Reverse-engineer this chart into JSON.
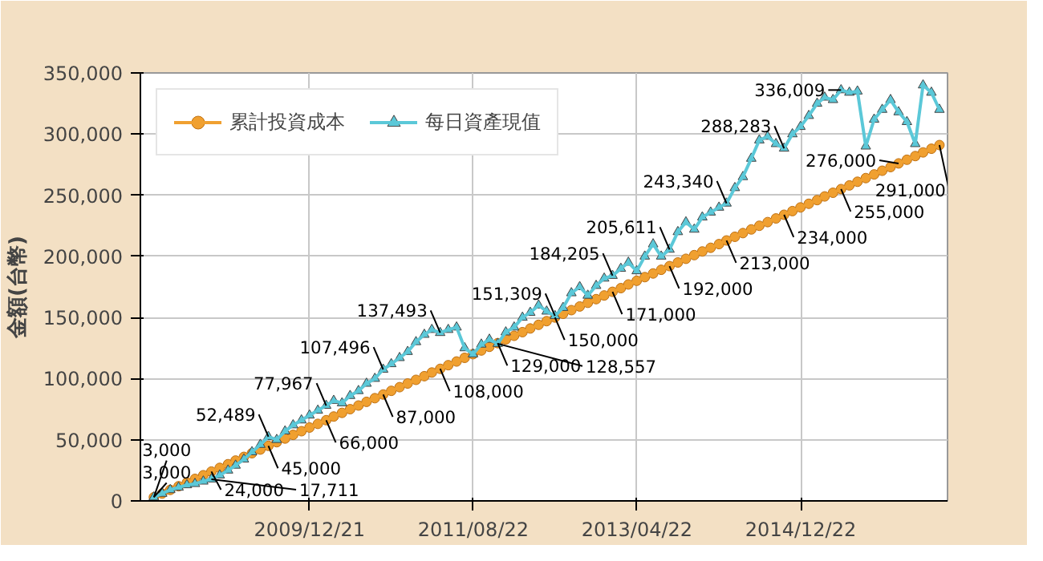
{
  "chart_data": {
    "type": "line",
    "ylabel": "金額(台幣)",
    "x": [
      "2008-05-21",
      "2008-06-21",
      "2008-07-21",
      "2008-08-21",
      "2008-09-21",
      "2008-10-21",
      "2008-11-21",
      "2008-12-21",
      "2009-01-21",
      "2009-02-21",
      "2009-03-21",
      "2009-04-21",
      "2009-05-21",
      "2009-06-21",
      "2009-07-21",
      "2009-08-21",
      "2009-09-21",
      "2009-10-21",
      "2009-11-21",
      "2009-12-21",
      "2010-01-21",
      "2010-02-21",
      "2010-03-21",
      "2010-04-21",
      "2010-05-21",
      "2010-06-21",
      "2010-07-21",
      "2010-08-21",
      "2010-09-21",
      "2010-10-21",
      "2010-11-21",
      "2010-12-21",
      "2011-01-21",
      "2011-02-21",
      "2011-03-21",
      "2011-04-21",
      "2011-05-21",
      "2011-06-21",
      "2011-07-21",
      "2011-08-21",
      "2011-09-21",
      "2011-10-21",
      "2011-11-21",
      "2011-12-21",
      "2012-01-21",
      "2012-02-21",
      "2012-03-21",
      "2012-04-21",
      "2012-05-21",
      "2012-06-21",
      "2012-07-21",
      "2012-08-21",
      "2012-09-21",
      "2012-10-21",
      "2012-11-21",
      "2012-12-21",
      "2013-01-21",
      "2013-02-21",
      "2013-03-21",
      "2013-04-21",
      "2013-05-21",
      "2013-06-21",
      "2013-07-21",
      "2013-08-21",
      "2013-09-21",
      "2013-10-21",
      "2013-11-21",
      "2013-12-21",
      "2014-01-21",
      "2014-02-21",
      "2014-03-21",
      "2014-04-21",
      "2014-05-21",
      "2014-06-21",
      "2014-07-21",
      "2014-08-21",
      "2014-09-21",
      "2014-10-21",
      "2014-11-21",
      "2014-12-21",
      "2015-01-21",
      "2015-02-21",
      "2015-03-21",
      "2015-04-21",
      "2015-05-21",
      "2015-06-21",
      "2015-07-21",
      "2015-08-21",
      "2015-09-21",
      "2015-10-21",
      "2015-11-21",
      "2015-12-21",
      "2016-01-21",
      "2016-02-21",
      "2016-03-21",
      "2016-04-21",
      "2016-05-21"
    ],
    "series": [
      {
        "name": "累計投資成本",
        "color": "#f0a030",
        "marker": "circle",
        "values": [
          3000,
          6000,
          9000,
          12000,
          15000,
          18000,
          21000,
          24000,
          27000,
          30000,
          33000,
          36000,
          39000,
          42000,
          45000,
          48000,
          51000,
          54000,
          57000,
          60000,
          63000,
          66000,
          69000,
          72000,
          75000,
          78000,
          81000,
          84000,
          87000,
          90000,
          93000,
          96000,
          99000,
          102000,
          105000,
          108000,
          111000,
          114000,
          117000,
          120000,
          123000,
          126000,
          129000,
          132000,
          135000,
          138000,
          141000,
          144000,
          147000,
          150000,
          153000,
          156000,
          159000,
          162000,
          165000,
          168000,
          171000,
          174000,
          177000,
          180000,
          183000,
          186000,
          189000,
          192000,
          195000,
          198000,
          201000,
          204000,
          207000,
          210000,
          213000,
          216000,
          219000,
          222000,
          225000,
          228000,
          231000,
          234000,
          237000,
          240000,
          243000,
          246000,
          249000,
          252000,
          255000,
          258000,
          261000,
          264000,
          267000,
          270000,
          273000,
          276000,
          279000,
          282000,
          285000,
          288000,
          291000
        ]
      },
      {
        "name": "每日資產現值",
        "color": "#5bc8d8",
        "marker": "triangle",
        "values": [
          3000,
          6000,
          9000,
          11000,
          13000,
          14000,
          16000,
          17711,
          21000,
          25000,
          29000,
          34000,
          40000,
          46000,
          52489,
          50000,
          57000,
          62000,
          66000,
          70000,
          74000,
          77967,
          82000,
          80000,
          86000,
          90000,
          96000,
          100000,
          107496,
          112000,
          117000,
          122000,
          130000,
          136000,
          140000,
          137493,
          140000,
          142000,
          125000,
          120000,
          128000,
          132000,
          128557,
          138000,
          142000,
          150000,
          154000,
          160000,
          155000,
          151309,
          158000,
          170000,
          175000,
          168000,
          176000,
          182000,
          184205,
          190000,
          195000,
          188000,
          200000,
          210000,
          200000,
          205611,
          220000,
          228000,
          222000,
          232000,
          236000,
          240000,
          243340,
          256000,
          265000,
          280000,
          295000,
          298000,
          292000,
          288283,
          300000,
          306000,
          315000,
          325000,
          330000,
          328000,
          336009,
          334000,
          335000,
          290000,
          312000,
          320000,
          328000,
          318000,
          310000,
          292000,
          340000,
          334000,
          320000
        ]
      }
    ],
    "xlim": [
      "2008-04-01",
      "2016-06-20"
    ],
    "xticks": [
      {
        "value": "2009-12-21",
        "label": "2009/12/21"
      },
      {
        "value": "2011-08-22",
        "label": "2011/08/22"
      },
      {
        "value": "2013-04-22",
        "label": "2013/04/22"
      },
      {
        "value": "2014-12-22",
        "label": "2014/12/22"
      }
    ],
    "ylim": [
      0,
      350000
    ],
    "yticks": [
      {
        "value": 0,
        "label": "0"
      },
      {
        "value": 50000,
        "label": "50,000"
      },
      {
        "value": 100000,
        "label": "100,000"
      },
      {
        "value": 150000,
        "label": "150,000"
      },
      {
        "value": 200000,
        "label": "200,000"
      },
      {
        "value": 250000,
        "label": "250,000"
      },
      {
        "value": 300000,
        "label": "300,000"
      },
      {
        "value": 350000,
        "label": "350,000"
      }
    ],
    "grid": true,
    "legend": "top left",
    "annotations": [
      {
        "text": "3,000",
        "x": "2008-05-21",
        "y": 3000
      },
      {
        "text": "3,000",
        "x": "2008-05-21",
        "y": 3000
      },
      {
        "text": "24,000",
        "x": "2008-12-21",
        "y": 24000
      },
      {
        "text": "17,711",
        "x": "2008-12-21",
        "y": 17711
      },
      {
        "text": "45,000",
        "x": "2009-07-21",
        "y": 45000
      },
      {
        "text": "52,489",
        "x": "2009-07-21",
        "y": 52489
      },
      {
        "text": "66,000",
        "x": "2010-02-21",
        "y": 66000
      },
      {
        "text": "77,967",
        "x": "2010-02-21",
        "y": 77967
      },
      {
        "text": "87,000",
        "x": "2010-09-21",
        "y": 87000
      },
      {
        "text": "107,496",
        "x": "2010-09-21",
        "y": 107496
      },
      {
        "text": "108,000",
        "x": "2011-04-21",
        "y": 108000
      },
      {
        "text": "137,493",
        "x": "2011-04-21",
        "y": 137493
      },
      {
        "text": "129,000",
        "x": "2011-11-21",
        "y": 129000
      },
      {
        "text": "128,557",
        "x": "2011-11-21",
        "y": 128557
      },
      {
        "text": "150,000",
        "x": "2012-06-21",
        "y": 150000
      },
      {
        "text": "151,309",
        "x": "2012-06-21",
        "y": 151309
      },
      {
        "text": "171,000",
        "x": "2013-01-21",
        "y": 171000
      },
      {
        "text": "184,205",
        "x": "2013-01-21",
        "y": 184205
      },
      {
        "text": "192,000",
        "x": "2013-08-21",
        "y": 192000
      },
      {
        "text": "205,611",
        "x": "2013-08-21",
        "y": 205611
      },
      {
        "text": "213,000",
        "x": "2014-03-21",
        "y": 213000
      },
      {
        "text": "243,340",
        "x": "2014-03-21",
        "y": 243340
      },
      {
        "text": "234,000",
        "x": "2014-10-21",
        "y": 234000
      },
      {
        "text": "288,283",
        "x": "2014-10-21",
        "y": 288283
      },
      {
        "text": "255,000",
        "x": "2015-05-21",
        "y": 255000
      },
      {
        "text": "336,009",
        "x": "2015-05-21",
        "y": 336009
      },
      {
        "text": "276,000",
        "x": "2015-12-21",
        "y": 276000
      },
      {
        "text": "291,000",
        "x": "2016-05-21",
        "y": 291000
      }
    ]
  }
}
